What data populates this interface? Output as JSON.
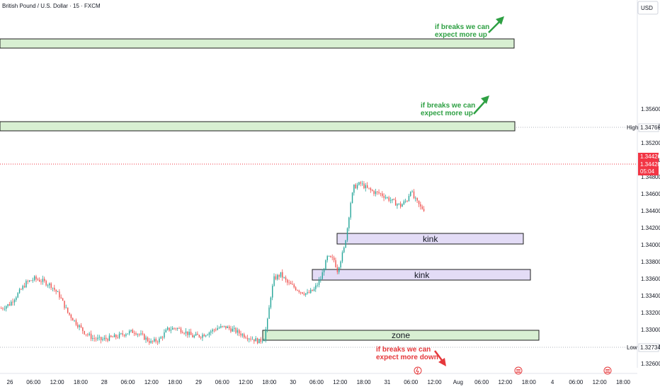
{
  "header": {
    "title": "British Pound / U.S. Dollar · 15 · FXCM"
  },
  "price_axis": {
    "currency": "USD",
    "high_label": "High",
    "high_value": "1.34766",
    "low_label": "Low",
    "low_value": "1.32734",
    "last_price_1": "1.34426",
    "last_price_2": "1.34420",
    "countdown": "05:04"
  },
  "annotations": {
    "note_top_1": "if breaks we can",
    "note_top_2": "expect more up",
    "note_mid_1": "if breaks we can",
    "note_mid_2": "expect more up",
    "note_low_1": "if breaks we can",
    "note_low_2": "expect more down",
    "kink_upper": "kink",
    "kink_lower": "kink",
    "zone": "zone"
  },
  "colors": {
    "up": "#26a69a",
    "down": "#ef5350",
    "green_zone_fill": "#d8efd2",
    "purple_zone_fill": "#e3dcf6",
    "note_green": "#2ea043",
    "note_red": "#e5383b",
    "price_tag": "#f23645"
  },
  "chart_data": {
    "type": "candlestick",
    "title": "British Pound / U.S. Dollar · 15 · FXCM",
    "ylim": [
      1.3255,
      1.368
    ],
    "y_ticks": [
      "1.32600",
      "1.32800",
      "1.33000",
      "1.33200",
      "1.33400",
      "1.33600",
      "1.33800",
      "1.34000",
      "1.34200",
      "1.34400",
      "1.34600",
      "1.34800",
      "1.35000",
      "1.35200",
      "1.35400",
      "1.35600"
    ],
    "x_ticks": [
      "26",
      "06:00",
      "12:00",
      "18:00",
      "28",
      "06:00",
      "12:00",
      "18:00",
      "29",
      "06:00",
      "12:00",
      "18:00",
      "30",
      "06:00",
      "12:00",
      "18:00",
      "31",
      "06:00",
      "12:00",
      "Aug",
      "06:00",
      "12:00",
      "18:00",
      "4",
      "06:00",
      "12:00",
      "18:00"
    ],
    "price_path": [
      [
        0,
        1.3325
      ],
      [
        5,
        1.333
      ],
      [
        10,
        1.3342
      ],
      [
        15,
        1.3355
      ],
      [
        20,
        1.336
      ],
      [
        25,
        1.3357
      ],
      [
        30,
        1.3352
      ],
      [
        35,
        1.334
      ],
      [
        40,
        1.332
      ],
      [
        45,
        1.3308
      ],
      [
        50,
        1.3297
      ],
      [
        55,
        1.329
      ],
      [
        60,
        1.3288
      ],
      [
        65,
        1.329
      ],
      [
        70,
        1.3292
      ],
      [
        75,
        1.3296
      ],
      [
        80,
        1.3298
      ],
      [
        85,
        1.3292
      ],
      [
        90,
        1.3285
      ],
      [
        95,
        1.3288
      ],
      [
        100,
        1.33
      ],
      [
        105,
        1.3302
      ],
      [
        110,
        1.3298
      ],
      [
        115,
        1.3292
      ],
      [
        120,
        1.3293
      ],
      [
        125,
        1.3297
      ],
      [
        130,
        1.3302
      ],
      [
        135,
        1.3303
      ],
      [
        140,
        1.3299
      ],
      [
        145,
        1.3294
      ],
      [
        150,
        1.329
      ],
      [
        155,
        1.3286
      ],
      [
        158,
        1.329
      ],
      [
        160,
        1.331
      ],
      [
        162,
        1.334
      ],
      [
        164,
        1.336
      ],
      [
        168,
        1.3365
      ],
      [
        172,
        1.3355
      ],
      [
        176,
        1.335
      ],
      [
        180,
        1.3345
      ],
      [
        184,
        1.3342
      ],
      [
        188,
        1.3347
      ],
      [
        192,
        1.336
      ],
      [
        196,
        1.3385
      ],
      [
        200,
        1.3382
      ],
      [
        202,
        1.337
      ],
      [
        206,
        1.3395
      ],
      [
        208,
        1.342
      ],
      [
        210,
        1.345
      ],
      [
        212,
        1.3468
      ],
      [
        216,
        1.3472
      ],
      [
        220,
        1.3466
      ],
      [
        224,
        1.3462
      ],
      [
        228,
        1.346
      ],
      [
        232,
        1.3455
      ],
      [
        236,
        1.345
      ],
      [
        240,
        1.3446
      ],
      [
        244,
        1.3453
      ],
      [
        246,
        1.3465
      ],
      [
        248,
        1.3455
      ],
      [
        252,
        1.3444
      ],
      [
        254,
        1.3442
      ]
    ]
  }
}
